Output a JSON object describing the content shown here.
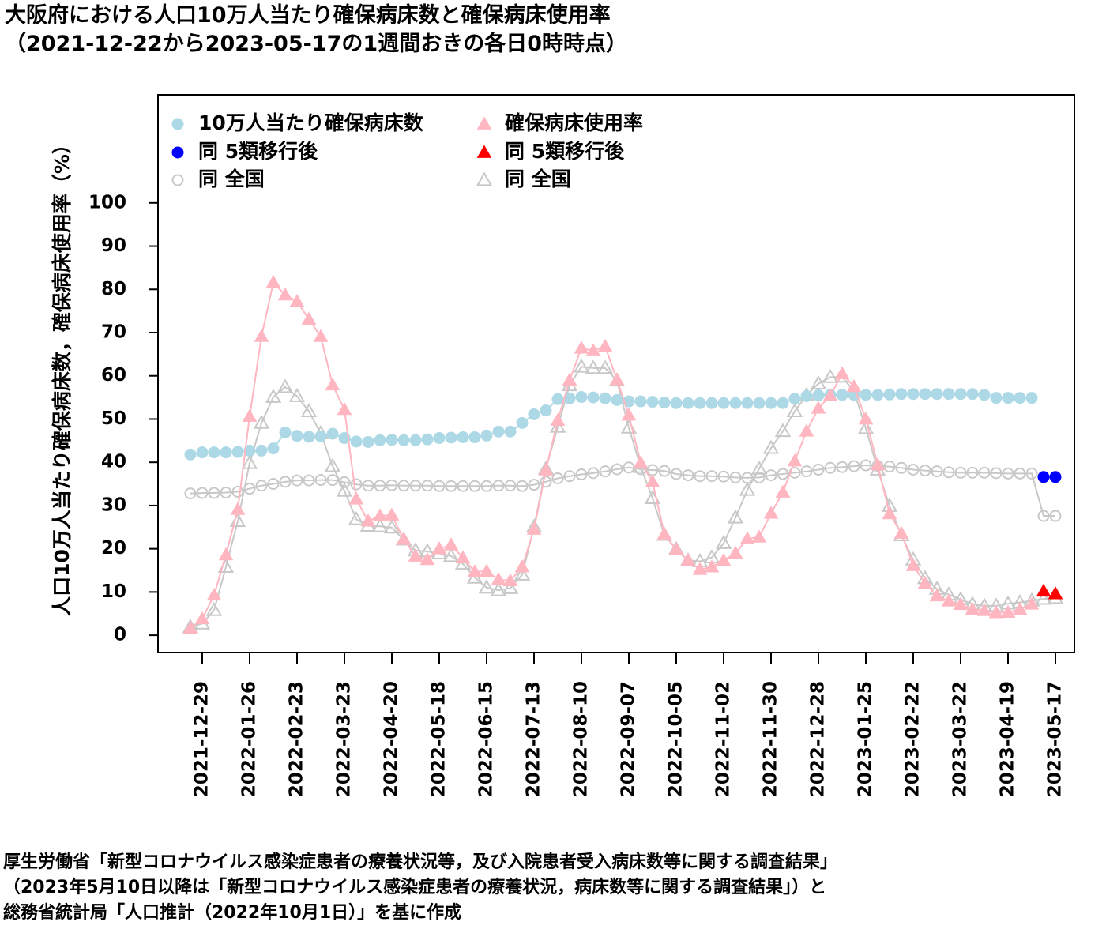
{
  "title": {
    "line1": "大阪府における人口10万人当たり確保病床数と確保病床使用率",
    "line2": "（2021-12-22から2023-05-17の1週間おきの各日0時時点）"
  },
  "source": {
    "line1": "厚生労働省「新型コロナウイルス感染症患者の療養状況等，及び入院患者受入病床数等に関する調査結果」",
    "line2": "（2023年5月10日以降は「新型コロナウイルス感染症患者の療養状況，病床数等に関する調査結果」）と",
    "line3": "総務省統計局「人口推計（2022年10月1日）」を基に作成"
  },
  "chart_data": {
    "type": "scatter",
    "ylabel": "人口10万人当たり確保病床数，確保病床使用率（%）",
    "ylim": [
      -4,
      125
    ],
    "yticks": [
      0,
      10,
      20,
      30,
      40,
      50,
      60,
      70,
      80,
      90,
      100
    ],
    "x": [
      "2021-12-22",
      "2021-12-29",
      "2022-01-05",
      "2022-01-12",
      "2022-01-19",
      "2022-01-26",
      "2022-02-02",
      "2022-02-09",
      "2022-02-16",
      "2022-02-23",
      "2022-03-02",
      "2022-03-09",
      "2022-03-16",
      "2022-03-23",
      "2022-03-30",
      "2022-04-06",
      "2022-04-13",
      "2022-04-20",
      "2022-04-27",
      "2022-05-04",
      "2022-05-11",
      "2022-05-18",
      "2022-05-25",
      "2022-06-01",
      "2022-06-08",
      "2022-06-15",
      "2022-06-22",
      "2022-06-29",
      "2022-07-06",
      "2022-07-13",
      "2022-07-20",
      "2022-07-27",
      "2022-08-03",
      "2022-08-10",
      "2022-08-17",
      "2022-08-24",
      "2022-08-31",
      "2022-09-07",
      "2022-09-14",
      "2022-09-21",
      "2022-09-28",
      "2022-10-05",
      "2022-10-12",
      "2022-10-19",
      "2022-10-26",
      "2022-11-02",
      "2022-11-09",
      "2022-11-16",
      "2022-11-23",
      "2022-11-30",
      "2022-12-07",
      "2022-12-14",
      "2022-12-21",
      "2022-12-28",
      "2023-01-04",
      "2023-01-11",
      "2023-01-18",
      "2023-01-25",
      "2023-02-01",
      "2023-02-08",
      "2023-02-15",
      "2023-02-22",
      "2023-03-01",
      "2023-03-08",
      "2023-03-15",
      "2023-03-22",
      "2023-03-29",
      "2023-04-05",
      "2023-04-12",
      "2023-04-19",
      "2023-04-26",
      "2023-05-03",
      "2023-05-10",
      "2023-05-17"
    ],
    "xticks": [
      "2021-12-29",
      "2022-01-26",
      "2022-02-23",
      "2022-03-23",
      "2022-04-20",
      "2022-05-18",
      "2022-06-15",
      "2022-07-13",
      "2022-08-10",
      "2022-09-07",
      "2022-10-05",
      "2022-11-02",
      "2022-11-30",
      "2022-12-28",
      "2023-01-25",
      "2023-02-22",
      "2023-03-22",
      "2023-04-19",
      "2023-05-17"
    ],
    "legend_position": "top-left",
    "grid": false,
    "series": [
      {
        "name": "10万人当たり確保病床数",
        "marker": "circle",
        "fill": "#add8e6",
        "line": "#add8e6",
        "values": [
          41.8,
          42.3,
          42.3,
          42.3,
          42.4,
          42.7,
          42.7,
          43.2,
          46.9,
          46.1,
          45.9,
          46.0,
          46.6,
          45.6,
          44.8,
          44.7,
          45.1,
          45.2,
          45.1,
          45.1,
          45.3,
          45.6,
          45.7,
          45.8,
          45.8,
          46.2,
          47.1,
          47.1,
          49.1,
          51.1,
          52.0,
          54.6,
          54.8,
          55.1,
          55.0,
          54.8,
          54.4,
          54.1,
          54.1,
          54.0,
          53.8,
          53.7,
          53.7,
          53.7,
          53.7,
          53.7,
          53.7,
          53.7,
          53.7,
          53.7,
          53.7,
          54.7,
          55.3,
          55.5,
          55.6,
          55.6,
          55.6,
          55.6,
          55.6,
          55.7,
          55.8,
          55.8,
          55.8,
          55.8,
          55.8,
          55.8,
          55.8,
          55.6,
          54.9,
          54.9,
          54.9,
          54.9,
          null,
          null
        ]
      },
      {
        "name": "同 5類移行後",
        "marker": "circle",
        "fill": "#0000ff",
        "line": null,
        "values": [
          null,
          null,
          null,
          null,
          null,
          null,
          null,
          null,
          null,
          null,
          null,
          null,
          null,
          null,
          null,
          null,
          null,
          null,
          null,
          null,
          null,
          null,
          null,
          null,
          null,
          null,
          null,
          null,
          null,
          null,
          null,
          null,
          null,
          null,
          null,
          null,
          null,
          null,
          null,
          null,
          null,
          null,
          null,
          null,
          null,
          null,
          null,
          null,
          null,
          null,
          null,
          null,
          null,
          null,
          null,
          null,
          null,
          null,
          null,
          null,
          null,
          null,
          null,
          null,
          null,
          null,
          null,
          null,
          null,
          null,
          null,
          null,
          36.6,
          36.6
        ]
      },
      {
        "name": "同 全国",
        "marker": "open-circle",
        "fill": "none",
        "line": "#c8c8c8",
        "values": [
          32.8,
          32.9,
          32.9,
          33.0,
          33.2,
          33.9,
          34.6,
          35.0,
          35.5,
          35.8,
          35.8,
          35.9,
          35.9,
          35.4,
          34.9,
          34.6,
          34.6,
          34.7,
          34.6,
          34.6,
          34.6,
          34.5,
          34.5,
          34.5,
          34.5,
          34.5,
          34.6,
          34.6,
          34.5,
          34.8,
          35.5,
          36.3,
          36.8,
          37.2,
          37.5,
          37.9,
          38.4,
          38.8,
          38.4,
          38.2,
          38.0,
          37.3,
          37.0,
          36.8,
          36.8,
          36.7,
          36.5,
          36.4,
          36.5,
          37.0,
          37.3,
          37.6,
          37.9,
          38.3,
          38.7,
          38.9,
          39.1,
          39.3,
          39.2,
          39.0,
          38.7,
          38.3,
          38.1,
          37.9,
          37.7,
          37.6,
          37.6,
          37.6,
          37.5,
          37.4,
          37.4,
          37.4,
          27.6,
          27.6
        ]
      },
      {
        "name": "確保病床使用率",
        "marker": "triangle",
        "fill": "#ffb6c1",
        "line": "#ffb6c1",
        "values": [
          1.6,
          3.8,
          9.3,
          18.6,
          29.1,
          50.6,
          69.1,
          81.6,
          78.7,
          77.2,
          73.1,
          69.1,
          57.9,
          52.2,
          31.5,
          26.4,
          27.6,
          27.8,
          22.2,
          18.3,
          17.5,
          20.0,
          20.9,
          17.9,
          14.7,
          14.8,
          12.9,
          12.6,
          15.8,
          24.5,
          38.2,
          49.7,
          59.0,
          66.4,
          65.8,
          66.8,
          59.1,
          50.9,
          39.9,
          35.5,
          23.4,
          19.8,
          17.3,
          15.2,
          15.8,
          17.3,
          19.0,
          22.3,
          22.7,
          28.2,
          33.1,
          40.3,
          47.2,
          52.5,
          55.4,
          60.5,
          57.5,
          50.0,
          39.4,
          28.1,
          23.6,
          16.1,
          12.0,
          9.1,
          7.9,
          7.1,
          6.0,
          5.7,
          5.2,
          5.3,
          6.0,
          7.2,
          null,
          null
        ]
      },
      {
        "name": "同 5類移行後",
        "marker": "triangle",
        "fill": "#ff0000",
        "line": null,
        "values": [
          null,
          null,
          null,
          null,
          null,
          null,
          null,
          null,
          null,
          null,
          null,
          null,
          null,
          null,
          null,
          null,
          null,
          null,
          null,
          null,
          null,
          null,
          null,
          null,
          null,
          null,
          null,
          null,
          null,
          null,
          null,
          null,
          null,
          null,
          null,
          null,
          null,
          null,
          null,
          null,
          null,
          null,
          null,
          null,
          null,
          null,
          null,
          null,
          null,
          null,
          null,
          null,
          null,
          null,
          null,
          null,
          null,
          null,
          null,
          null,
          null,
          null,
          null,
          null,
          null,
          null,
          null,
          null,
          null,
          null,
          null,
          null,
          10.2,
          9.6
        ]
      },
      {
        "name": "同 全国",
        "marker": "open-triangle",
        "fill": "none",
        "line": "#c8c8c8",
        "values": [
          1.9,
          2.7,
          5.8,
          15.8,
          26.4,
          39.8,
          49.1,
          55.1,
          57.4,
          55.3,
          51.8,
          46.7,
          39.1,
          33.4,
          26.8,
          25.3,
          25.2,
          24.9,
          22.1,
          19.6,
          19.4,
          18.9,
          18.3,
          16.5,
          13.3,
          11.0,
          10.4,
          10.9,
          14.0,
          25.1,
          38.5,
          48.2,
          57.8,
          62.1,
          61.8,
          61.8,
          58.9,
          48.0,
          38.9,
          31.7,
          23.2,
          19.9,
          17.3,
          17.1,
          18.0,
          21.3,
          27.2,
          33.6,
          38.5,
          43.3,
          47.2,
          51.8,
          55.5,
          58.2,
          59.7,
          59.8,
          56.4,
          47.9,
          38.3,
          29.9,
          23.1,
          17.5,
          13.2,
          10.7,
          9.4,
          8.3,
          7.2,
          6.8,
          6.8,
          7.3,
          7.6,
          8.0,
          8.4,
          8.6
        ]
      }
    ]
  }
}
